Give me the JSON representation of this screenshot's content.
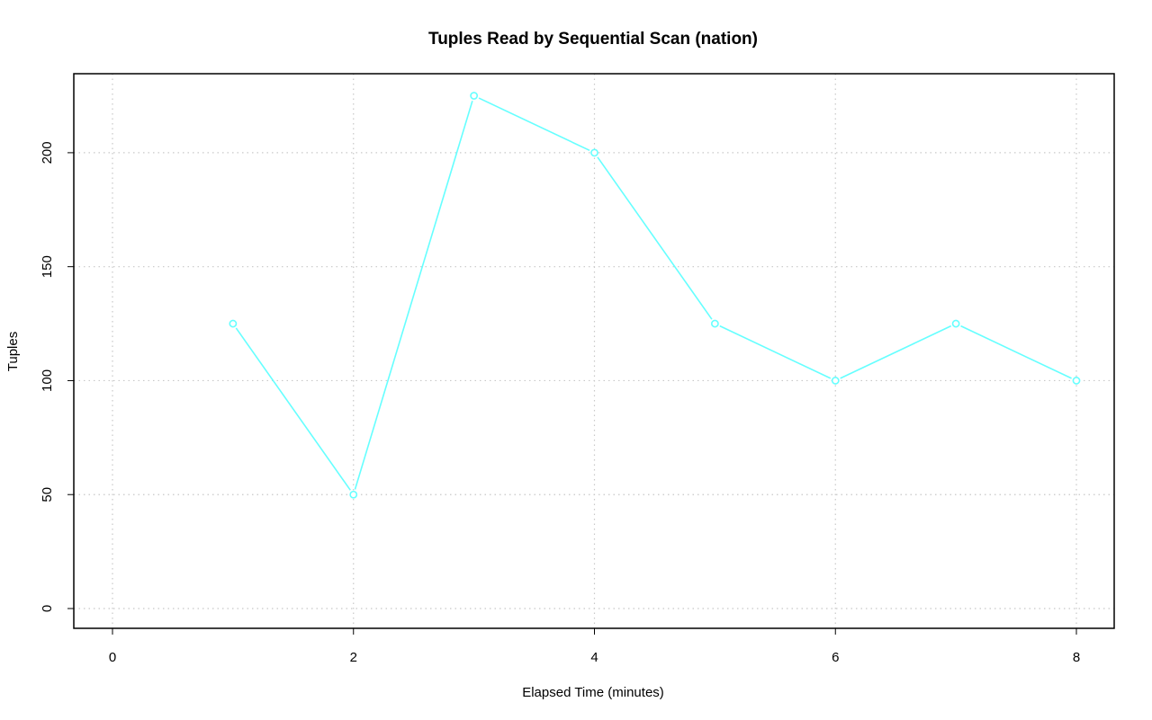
{
  "chart_data": {
    "type": "line",
    "title": "Tuples Read by Sequential Scan (nation)",
    "xlabel": "Elapsed Time (minutes)",
    "ylabel": "Tuples",
    "x": [
      1,
      2,
      3,
      4,
      5,
      6,
      7,
      8
    ],
    "series": [
      {
        "values": [
          125,
          50,
          225,
          200,
          125,
          100,
          125,
          100
        ],
        "color": "#66ffff"
      }
    ],
    "xlim": [
      0,
      8
    ],
    "ylim": [
      0,
      225
    ],
    "xticks": [
      0,
      2,
      4,
      6,
      8
    ],
    "yticks": [
      0,
      50,
      100,
      150,
      200
    ],
    "xtick_labels": [
      "0",
      "2",
      "4",
      "6",
      "8"
    ],
    "ytick_labels": [
      "0",
      "50",
      "100",
      "150",
      "200"
    ],
    "grid": true,
    "grid_style": "dotted",
    "markers": "open-circle"
  }
}
